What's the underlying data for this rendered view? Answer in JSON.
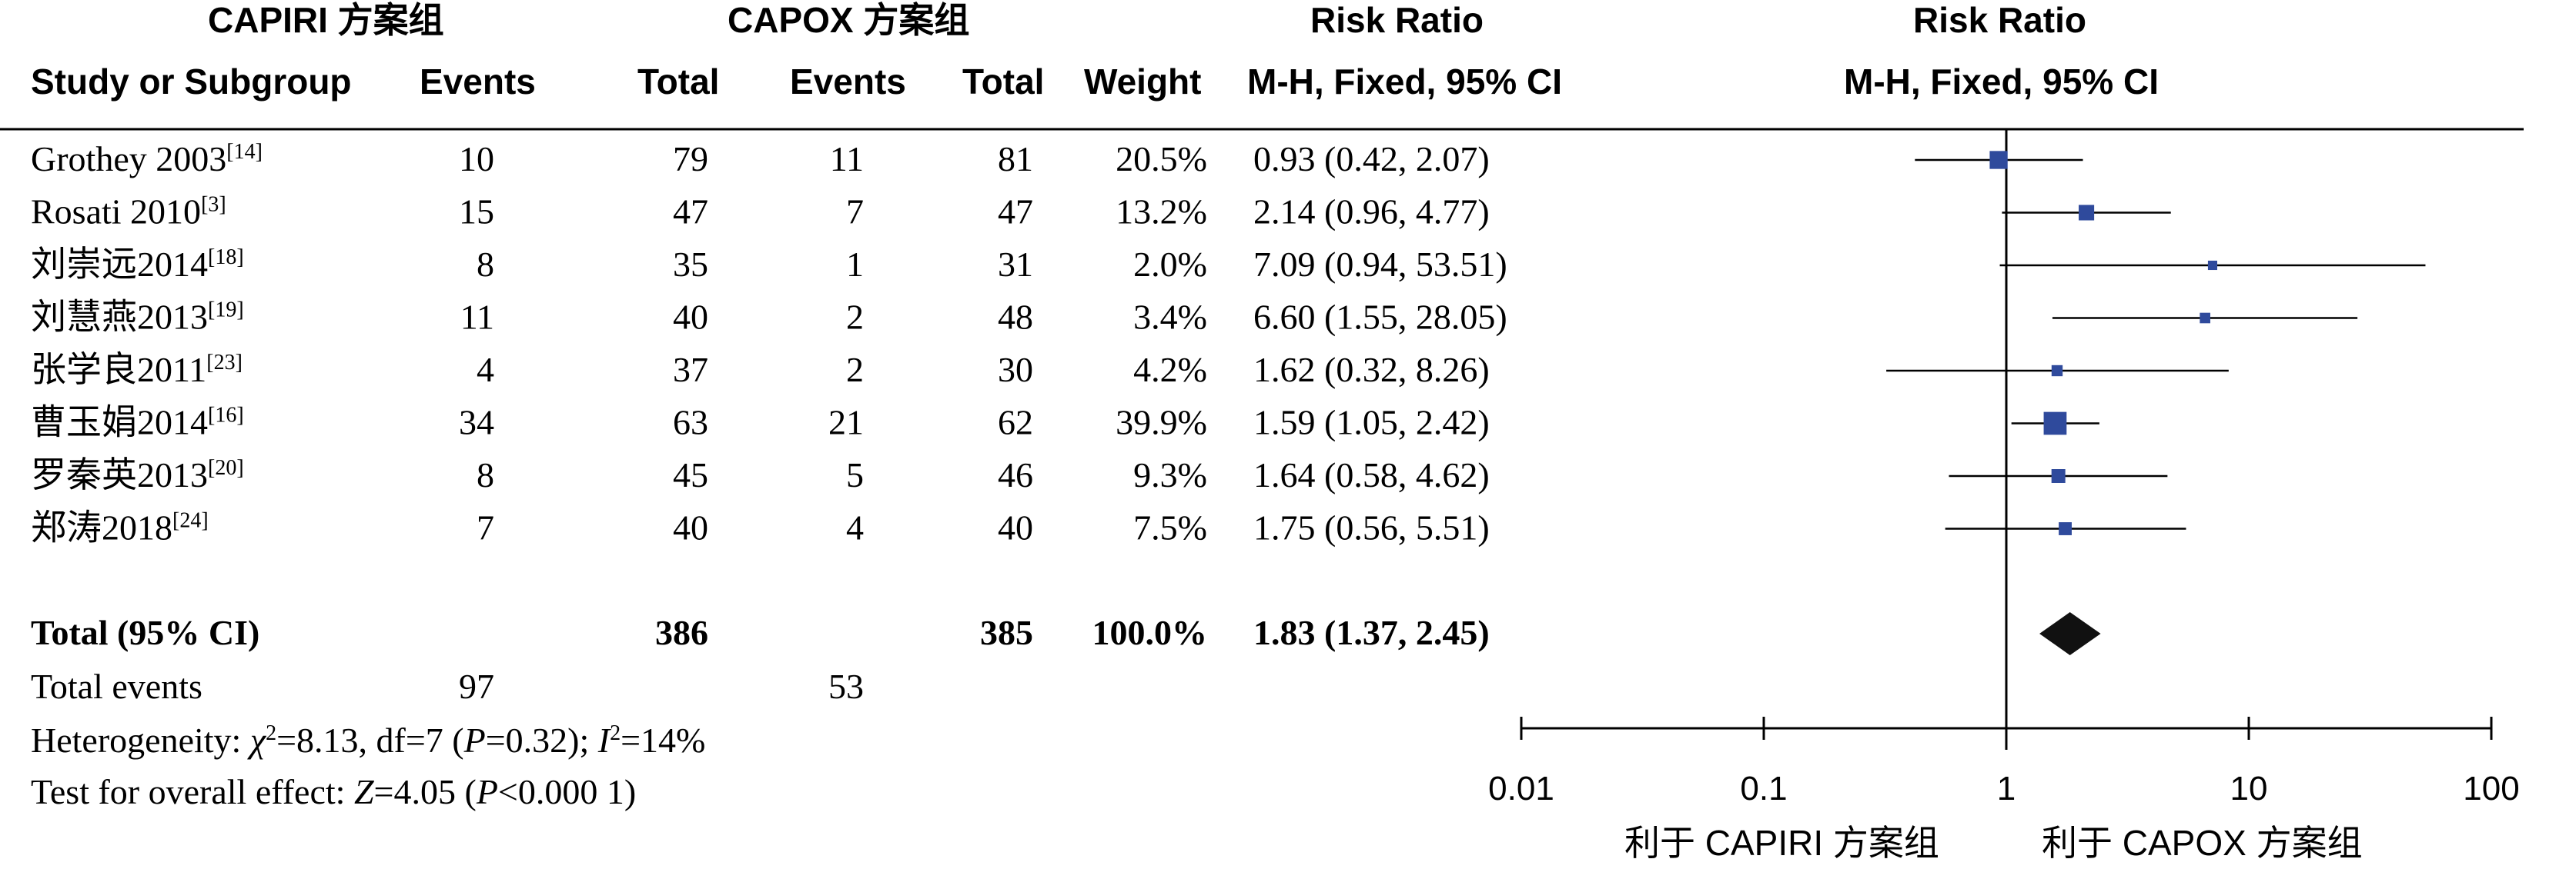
{
  "header": {
    "group_a": "CAPIRI 方案组",
    "group_b": "CAPOX 方案组",
    "rr_table": "Risk Ratio",
    "rr_plot": "Risk Ratio",
    "study": "Study or Subgroup",
    "events_a": "Events",
    "total_a": "Total",
    "events_b": "Events",
    "total_b": "Total",
    "weight": "Weight",
    "method_table": "M-H, Fixed, 95% CI",
    "method_plot": "M-H, Fixed, 95% CI"
  },
  "rows": [
    {
      "name": "Grothey 2003",
      "ref": "[14]",
      "ev_a": "10",
      "tot_a": "79",
      "ev_b": "11",
      "tot_b": "81",
      "weight": "20.5%",
      "ci": "0.93 (0.42, 2.07)"
    },
    {
      "name": "Rosati 2010",
      "ref": "[3]",
      "ev_a": "15",
      "tot_a": "47",
      "ev_b": "7",
      "tot_b": "47",
      "weight": "13.2%",
      "ci": "2.14 (0.96, 4.77)"
    },
    {
      "name": "刘崇远2014",
      "ref": "[18]",
      "ev_a": "8",
      "tot_a": "35",
      "ev_b": "1",
      "tot_b": "31",
      "weight": "2.0%",
      "ci": "7.09 (0.94, 53.51)"
    },
    {
      "name": "刘慧燕2013",
      "ref": "[19]",
      "ev_a": "11",
      "tot_a": "40",
      "ev_b": "2",
      "tot_b": "48",
      "weight": "3.4%",
      "ci": "6.60 (1.55, 28.05)"
    },
    {
      "name": "张学良2011",
      "ref": "[23]",
      "ev_a": "4",
      "tot_a": "37",
      "ev_b": "2",
      "tot_b": "30",
      "weight": "4.2%",
      "ci": "1.62 (0.32, 8.26)"
    },
    {
      "name": "曹玉娟2014",
      "ref": "[16]",
      "ev_a": "34",
      "tot_a": "63",
      "ev_b": "21",
      "tot_b": "62",
      "weight": "39.9%",
      "ci": "1.59 (1.05, 2.42)"
    },
    {
      "name": "罗秦英2013",
      "ref": "[20]",
      "ev_a": "8",
      "tot_a": "45",
      "ev_b": "5",
      "tot_b": "46",
      "weight": "9.3%",
      "ci": "1.64 (0.58, 4.62)"
    },
    {
      "name": "郑涛2018",
      "ref": "[24]",
      "ev_a": "7",
      "tot_a": "40",
      "ev_b": "4",
      "tot_b": "40",
      "weight": "7.5%",
      "ci": "1.75 (0.56, 5.51)"
    }
  ],
  "total": {
    "label": "Total (95% CI)",
    "tot_a": "386",
    "tot_b": "385",
    "weight": "100.0%",
    "ci": "1.83 (1.37, 2.45)"
  },
  "total_events": {
    "label": "Total events",
    "ev_a": "97",
    "ev_b": "53"
  },
  "footer": {
    "het_prefix": "Heterogeneity: ",
    "het_chi": "χ",
    "het_mid": "=8.13, df=7 (",
    "het_p": "P",
    "het_p_val": "=0.32); ",
    "het_i": "I",
    "het_i_val": "=14%",
    "sq": "2",
    "eff_prefix": "Test for overall effect: ",
    "eff_z": "Z",
    "eff_z_val": "=4.05 (",
    "eff_p": "P",
    "eff_p_val": "<0.000 1)"
  },
  "axis": {
    "ticks": [
      "0.01",
      "0.1",
      "1",
      "10",
      "100"
    ],
    "favors_left": "利于 CAPIRI 方案组",
    "favors_right": "利于 CAPOX 方案组"
  },
  "colors": {
    "marker": "#2f4a9c",
    "diamond": "#111111",
    "line": "#000000"
  },
  "chart_data": {
    "type": "forest",
    "scale": "log",
    "xlim": [
      0.01,
      100
    ],
    "reference_line": 1,
    "series": [
      {
        "study": "Grothey 2003",
        "rr": 0.93,
        "lower": 0.42,
        "upper": 2.07,
        "weight": 20.5
      },
      {
        "study": "Rosati 2010",
        "rr": 2.14,
        "lower": 0.96,
        "upper": 4.77,
        "weight": 13.2
      },
      {
        "study": "刘崇远2014",
        "rr": 7.09,
        "lower": 0.94,
        "upper": 53.51,
        "weight": 2.0
      },
      {
        "study": "刘慧燕2013",
        "rr": 6.6,
        "lower": 1.55,
        "upper": 28.05,
        "weight": 3.4
      },
      {
        "study": "张学良2011",
        "rr": 1.62,
        "lower": 0.32,
        "upper": 8.26,
        "weight": 4.2
      },
      {
        "study": "曹玉娟2014",
        "rr": 1.59,
        "lower": 1.05,
        "upper": 2.42,
        "weight": 39.9
      },
      {
        "study": "罗秦英2013",
        "rr": 1.64,
        "lower": 0.58,
        "upper": 4.62,
        "weight": 9.3
      },
      {
        "study": "郑涛2018",
        "rr": 1.75,
        "lower": 0.56,
        "upper": 5.51,
        "weight": 7.5
      }
    ],
    "pooled": {
      "rr": 1.83,
      "lower": 1.37,
      "upper": 2.45
    }
  }
}
